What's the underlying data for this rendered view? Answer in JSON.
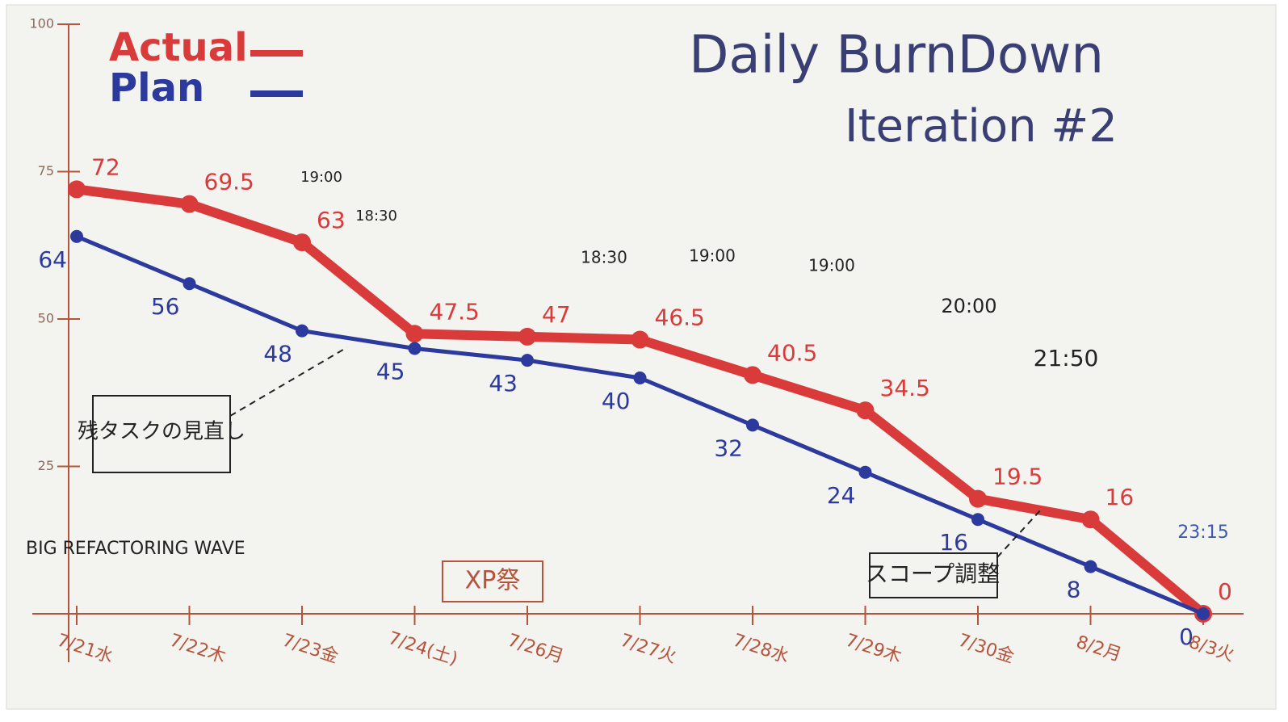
{
  "chart_data": {
    "type": "line",
    "title": "Daily BurnDown",
    "subtitle": "Iteration #2",
    "categories": [
      "7/21水",
      "7/22木",
      "7/23金",
      "7/24(土)",
      "7/26月",
      "7/27火",
      "7/28水",
      "7/29木",
      "7/30金",
      "8/2月",
      "8/3火"
    ],
    "series": [
      {
        "name": "Actual",
        "color": "#d93a3a",
        "values": [
          72,
          69.5,
          63,
          47.5,
          47,
          46.5,
          40.5,
          34.5,
          19.5,
          16,
          0
        ]
      },
      {
        "name": "Plan",
        "color": "#2b3a9c",
        "values": [
          64,
          56,
          48,
          45,
          43,
          40,
          32,
          24,
          16,
          8,
          0
        ]
      }
    ],
    "ylim": [
      0,
      100
    ],
    "yticks": [
      25,
      50,
      75,
      100
    ],
    "legend": "top-left",
    "annotations": [
      "BIG REFACTORING WAVE",
      "XP祭",
      "残タスクの見直し",
      "スコープ調整",
      "19:00",
      "18:30",
      "18:30",
      "19:00",
      "19:00",
      "20:00",
      "21:50",
      "23:15"
    ]
  }
}
